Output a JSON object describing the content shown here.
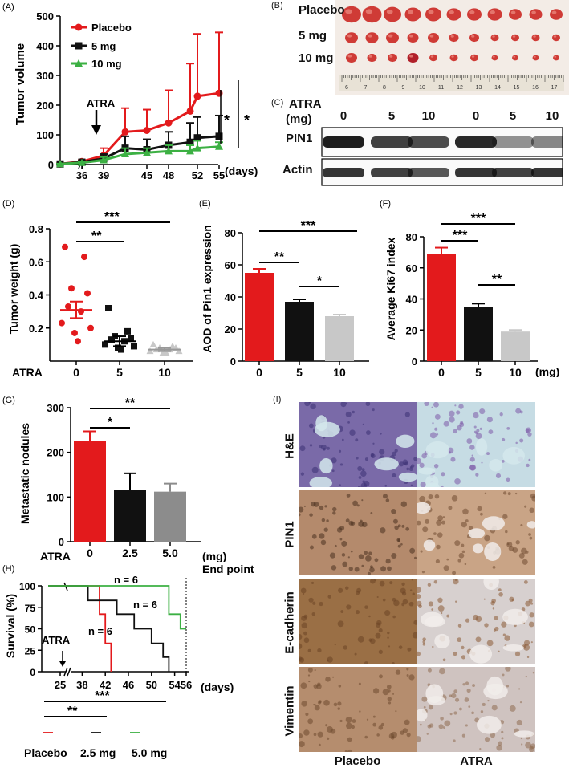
{
  "panels": {
    "A": {
      "letter": "(A)"
    },
    "B": {
      "letter": "(B)",
      "row_labels": [
        "Placebo",
        "5 mg",
        "10 mg"
      ],
      "ruler_numbers": [
        "6",
        "7",
        "8",
        "9",
        "10",
        "11",
        "12",
        "13",
        "14",
        "15",
        "16",
        "17"
      ]
    },
    "C": {
      "letter": "(C)",
      "header_line1": "ATRA",
      "header_line2": "(mg)",
      "lanes": [
        "0",
        "5",
        "10",
        "0",
        "5",
        "10"
      ],
      "bands": [
        "PIN1",
        "Actin"
      ]
    },
    "D": {
      "letter": "(D)"
    },
    "E": {
      "letter": "(E)"
    },
    "F": {
      "letter": "(F)",
      "x_unit": "(mg)"
    },
    "G": {
      "letter": "(G)"
    },
    "H": {
      "letter": "(H)",
      "end_point": "End point"
    },
    "I": {
      "letter": "(I)",
      "rows": [
        "H&E",
        "PIN1",
        "E-cadherin",
        "Vimentin"
      ],
      "cols": [
        "Placebo",
        "ATRA"
      ]
    }
  },
  "colors": {
    "placebo": "#e31a1c",
    "mg5": "#111111",
    "mg10": "#3cb043",
    "grey": "#c8c8c8",
    "darkgrey": "#8c8c8c"
  },
  "chart_data": [
    {
      "id": "A",
      "type": "line",
      "ylabel": "Tumor volume",
      "xlabel": "(days)",
      "x": [
        33,
        36,
        39,
        42,
        45,
        48,
        51,
        52,
        55
      ],
      "ylim": [
        0,
        500
      ],
      "yticks": [
        "0",
        "100",
        "200",
        "300",
        "400",
        "500"
      ],
      "xticks": [
        "36",
        "39",
        "45",
        "48",
        "52",
        "55"
      ],
      "annotation": "ATRA",
      "sig": [
        "*",
        "*"
      ],
      "series": [
        {
          "name": "Placebo",
          "values": [
            2,
            10,
            30,
            110,
            115,
            140,
            180,
            230,
            240
          ],
          "err": [
            2,
            5,
            25,
            80,
            70,
            110,
            160,
            210,
            205
          ]
        },
        {
          "name": "5 mg",
          "values": [
            2,
            8,
            20,
            55,
            50,
            65,
            75,
            90,
            95
          ],
          "err": [
            1,
            4,
            15,
            40,
            35,
            45,
            65,
            70,
            70
          ]
        },
        {
          "name": "10 mg",
          "values": [
            2,
            6,
            15,
            35,
            40,
            45,
            45,
            55,
            60
          ],
          "err": [
            1,
            3,
            10,
            20,
            15,
            20,
            20,
            25,
            15
          ]
        }
      ]
    },
    {
      "id": "D",
      "type": "scatter",
      "ylabel": "Tumor weight (g)",
      "xprefix": "ATRA",
      "categories": [
        "0",
        "5",
        "10"
      ],
      "ylim": [
        0,
        0.8
      ],
      "yticks": [
        "0.2",
        "0.4",
        "0.6",
        "0.8"
      ],
      "means": [
        0.31,
        0.12,
        0.07
      ],
      "sem": [
        0.05,
        0.03,
        0.01
      ],
      "points": [
        [
          0.69,
          0.63,
          0.44,
          0.41,
          0.33,
          0.3,
          0.23,
          0.2,
          0.17,
          0.12
        ],
        [
          0.32,
          0.18,
          0.15,
          0.14,
          0.13,
          0.12,
          0.1,
          0.09,
          0.08,
          0.07
        ],
        [
          0.1,
          0.09,
          0.08,
          0.08,
          0.07,
          0.07,
          0.06,
          0.06,
          0.05,
          0.05
        ]
      ],
      "sig": [
        "***",
        "**"
      ]
    },
    {
      "id": "E",
      "type": "bar",
      "ylabel": "AOD of Pin1 expression",
      "categories": [
        "0",
        "5",
        "10"
      ],
      "values": [
        55,
        37,
        28
      ],
      "err": [
        2.5,
        1.5,
        1
      ],
      "ylim": [
        0,
        80
      ],
      "yticks": [
        "0",
        "20",
        "40",
        "60",
        "80"
      ],
      "sig": [
        "***",
        "**",
        "*"
      ]
    },
    {
      "id": "F",
      "type": "bar",
      "ylabel": "Average Ki67 index",
      "categories": [
        "0",
        "5",
        "10"
      ],
      "values": [
        69,
        35,
        19
      ],
      "err": [
        4,
        2,
        1
      ],
      "ylim": [
        0,
        80
      ],
      "yticks": [
        "0",
        "20",
        "40",
        "60",
        "80"
      ],
      "sig": [
        "***",
        "***",
        "**"
      ]
    },
    {
      "id": "G",
      "type": "bar",
      "ylabel": "Metastatic nodules",
      "xprefix": "ATRA",
      "xunit": "(mg)",
      "categories": [
        "0",
        "2.5",
        "5.0"
      ],
      "values": [
        225,
        115,
        112
      ],
      "err": [
        22,
        38,
        18
      ],
      "ylim": [
        0,
        300
      ],
      "yticks": [
        "0",
        "100",
        "200",
        "300"
      ],
      "sig": [
        "**",
        "*"
      ]
    },
    {
      "id": "H",
      "type": "line",
      "ylabel": "Survival (%)",
      "xlabel": "(days)",
      "xticks": [
        "25",
        "38",
        "42",
        "46",
        "50",
        "54",
        "56"
      ],
      "ylim": [
        0,
        100
      ],
      "yticks": [
        "0",
        "25",
        "50",
        "75",
        "100"
      ],
      "annotation": "ATRA",
      "n_labels": [
        "n = 6",
        "n = 6",
        "n = 6"
      ],
      "legend": [
        "Placebo",
        "2.5 mg",
        "5.0 mg"
      ],
      "sig": [
        "***",
        "**"
      ],
      "series": [
        {
          "name": "Placebo",
          "x": [
            22,
            41,
            41,
            42,
            42,
            43,
            43
          ],
          "y": [
            100,
            100,
            67,
            67,
            33,
            33,
            0
          ]
        },
        {
          "name": "2.5 mg",
          "x": [
            22,
            39,
            39,
            44,
            44,
            47,
            47,
            50,
            50,
            52,
            52,
            53,
            53
          ],
          "y": [
            100,
            100,
            83,
            83,
            67,
            67,
            50,
            50,
            33,
            33,
            17,
            17,
            0
          ]
        },
        {
          "name": "5.0 mg",
          "x": [
            22,
            53,
            53,
            55,
            55,
            56
          ],
          "y": [
            100,
            100,
            67,
            67,
            50,
            50
          ]
        }
      ]
    }
  ]
}
